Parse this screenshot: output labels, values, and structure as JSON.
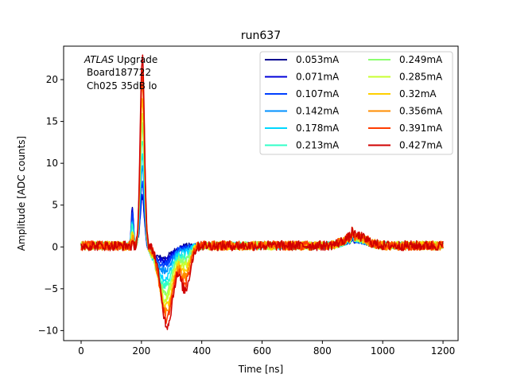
{
  "chart_data": {
    "type": "line",
    "title": "run637",
    "xlabel": "Time [ns]",
    "ylabel": "Amplitude [ADC counts]",
    "xlim": [
      -58,
      1250
    ],
    "ylim": [
      -11.2,
      24
    ],
    "xticks": [
      0,
      200,
      400,
      600,
      800,
      1000,
      1200
    ],
    "yticks": [
      -10,
      -5,
      0,
      5,
      10,
      15,
      20
    ],
    "grid": false,
    "legend_position": "top-right",
    "legend_columns": 2,
    "annotation": {
      "line1_italic": "ATLAS",
      "line1_rest": " Upgrade",
      "line2": "Board187722",
      "line3": "Ch025 35dB lo"
    },
    "series": [
      {
        "name": "0.053mA",
        "color": "#00008f",
        "peak": 6.0,
        "trough": -1.5
      },
      {
        "name": "0.071mA",
        "color": "#0000d9",
        "peak": 6.3,
        "trough": -1.8
      },
      {
        "name": "0.107mA",
        "color": "#0040ff",
        "peak": 7.5,
        "trough": -2.3
      },
      {
        "name": "0.142mA",
        "color": "#0090ff",
        "peak": 9.5,
        "trough": -3.0
      },
      {
        "name": "0.178mA",
        "color": "#00d8ff",
        "peak": 11.0,
        "trough": -4.0
      },
      {
        "name": "0.213mA",
        "color": "#30ffc8",
        "peak": 13.0,
        "trough": -4.8
      },
      {
        "name": "0.249mA",
        "color": "#8cff70",
        "peak": 14.5,
        "trough": -5.6
      },
      {
        "name": "0.285mA",
        "color": "#c8ff30",
        "peak": 16.0,
        "trough": -6.4
      },
      {
        "name": "0.32mA",
        "color": "#ffd000",
        "peak": 17.5,
        "trough": -7.2
      },
      {
        "name": "0.356mA",
        "color": "#ff8c00",
        "peak": 19.5,
        "trough": -8.0
      },
      {
        "name": "0.391mA",
        "color": "#ff3c00",
        "peak": 21.0,
        "trough": -8.8
      },
      {
        "name": "0.427mA",
        "color": "#d00000",
        "peak": 22.5,
        "trough": -9.5
      }
    ]
  }
}
